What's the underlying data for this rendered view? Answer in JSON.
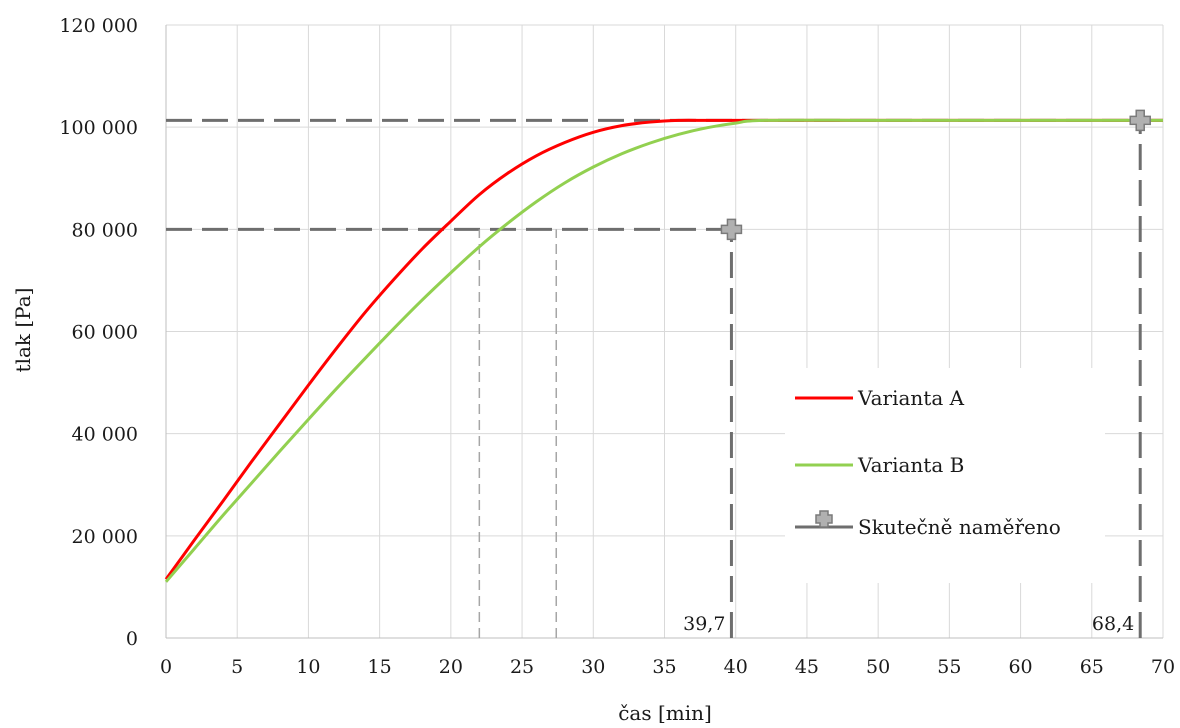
{
  "chart_data": {
    "type": "line",
    "xlabel": "čas [min]",
    "ylabel": "tlak [Pa]",
    "xlim": [
      0,
      70
    ],
    "ylim": [
      0,
      120000
    ],
    "x_ticks": [
      0,
      5,
      10,
      15,
      20,
      25,
      30,
      35,
      40,
      45,
      50,
      55,
      60,
      65,
      70
    ],
    "y_ticks": [
      0,
      20000,
      40000,
      60000,
      80000,
      100000,
      120000
    ],
    "x_tick_labels": [
      "0",
      "5",
      "10",
      "15",
      "20",
      "25",
      "30",
      "35",
      "40",
      "45",
      "50",
      "55",
      "60",
      "65",
      "70"
    ],
    "y_tick_labels": [
      "0",
      "20 000",
      "40 000",
      "60 000",
      "80 000",
      "100 000",
      "120 000"
    ],
    "grid": true,
    "legend_position": "right",
    "series": [
      {
        "name": "Varianta A",
        "color": "#ff0000",
        "x": [
          0,
          2,
          4,
          6,
          8,
          10,
          12,
          14,
          16,
          18,
          20,
          22,
          24,
          26,
          28,
          30,
          32,
          34,
          36,
          38,
          40,
          50,
          60,
          70
        ],
        "y": [
          11500,
          19200,
          26800,
          34500,
          42000,
          49500,
          56800,
          63800,
          70200,
          76200,
          81600,
          86800,
          91000,
          94400,
          97000,
          99000,
          100300,
          101000,
          101325,
          101325,
          101325,
          101325,
          101325,
          101325
        ]
      },
      {
        "name": "Varianta B",
        "color": "#92d050",
        "x": [
          0,
          2,
          4,
          6,
          8,
          10,
          12,
          14,
          16,
          18,
          20,
          22,
          24,
          26,
          28,
          30,
          32,
          34,
          36,
          38,
          40,
          42,
          50,
          60,
          70
        ],
        "y": [
          11000,
          17500,
          24000,
          30300,
          36600,
          42800,
          48900,
          54800,
          60600,
          66200,
          71500,
          76600,
          81200,
          85400,
          89100,
          92200,
          94800,
          96900,
          98600,
          99900,
          100800,
          101325,
          101325,
          101325,
          101325
        ]
      },
      {
        "name": "Skutečně naměřeno",
        "color": "#808080",
        "x": [
          39.7,
          68.4
        ],
        "y": [
          80000,
          101325
        ]
      }
    ],
    "reference_lines": [
      {
        "type": "horizontal",
        "y": 101325,
        "from_x": 0,
        "to_x": 70,
        "style": "dashed-dark"
      },
      {
        "type": "horizontal",
        "y": 80000,
        "from_x": 0,
        "to_x": 39.7,
        "style": "dashed-dark"
      },
      {
        "type": "vertical",
        "x": 39.7,
        "from_y": 0,
        "to_y": 80000,
        "style": "dashed-dark"
      },
      {
        "type": "vertical",
        "x": 68.4,
        "from_y": 0,
        "to_y": 101325,
        "style": "dashed-dark"
      },
      {
        "type": "vertical",
        "x": 22.0,
        "from_y": 0,
        "to_y": 80000,
        "style": "dashed-light"
      },
      {
        "type": "vertical",
        "x": 27.4,
        "from_y": 0,
        "to_y": 80000,
        "style": "dashed-light"
      }
    ],
    "annotations": [
      {
        "text": "39,7",
        "x": 39.7
      },
      {
        "text": "68,4",
        "x": 68.4
      }
    ]
  }
}
